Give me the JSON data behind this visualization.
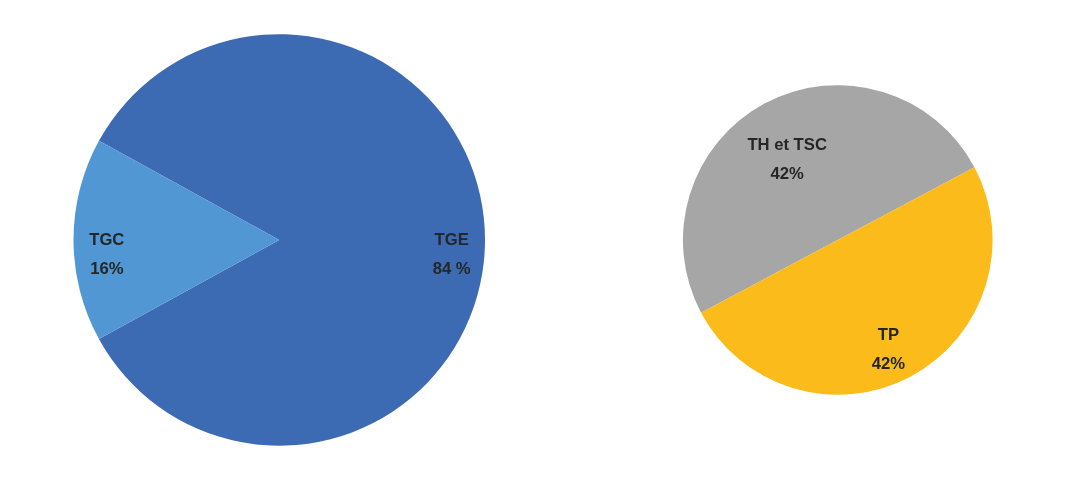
{
  "chart_data": [
    {
      "type": "pie",
      "categories": [
        "TGE",
        "TGC"
      ],
      "values": [
        84,
        16
      ],
      "colors": [
        "#3d6bb3",
        "#5097d3"
      ],
      "value_labels": [
        "84 %",
        "16%"
      ]
    },
    {
      "type": "pie",
      "categories": [
        "TH et TSC",
        "TP"
      ],
      "values": [
        42,
        42
      ],
      "colors": [
        "#a6a6a6",
        "#fbbb1a"
      ],
      "value_labels": [
        "42%",
        "42%"
      ]
    }
  ]
}
